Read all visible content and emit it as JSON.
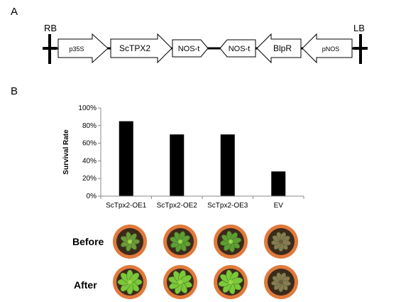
{
  "panel_a": {
    "letter": "A",
    "rb_label": "RB",
    "lb_label": "LB",
    "elements": [
      {
        "label": "p35S",
        "shape": "arrow-right"
      },
      {
        "label": "ScTPX2",
        "shape": "arrow-right"
      },
      {
        "label": "NOS-t",
        "shape": "pentagon-right"
      },
      {
        "label": "NOS-t",
        "shape": "pentagon-left"
      },
      {
        "label": "BlpR",
        "shape": "arrow-left"
      },
      {
        "label": "pNOS",
        "shape": "arrow-left"
      }
    ]
  },
  "panel_b": {
    "letter": "B",
    "row_labels": {
      "before": "Before",
      "after": "After"
    }
  },
  "chart_data": {
    "type": "bar",
    "categories": [
      "ScTpx2-OE1",
      "ScTpx2-OE2",
      "ScTpx2-OE3",
      "EV"
    ],
    "values": [
      85,
      70,
      70,
      28
    ],
    "ylabel": "Survival Rate",
    "xlabel": "",
    "ylim": [
      0,
      100
    ],
    "yticks": [
      "0%",
      "20%",
      "40%",
      "60%",
      "80%",
      "100%"
    ],
    "grid": false,
    "bar_color": "#000000"
  },
  "colors": {
    "pot": "#c8602a",
    "pot_rim": "#e07a3c",
    "soil": "#3b2a1c",
    "plant_green": "#7bc83a",
    "plant_wilted": "#8a7a55"
  }
}
